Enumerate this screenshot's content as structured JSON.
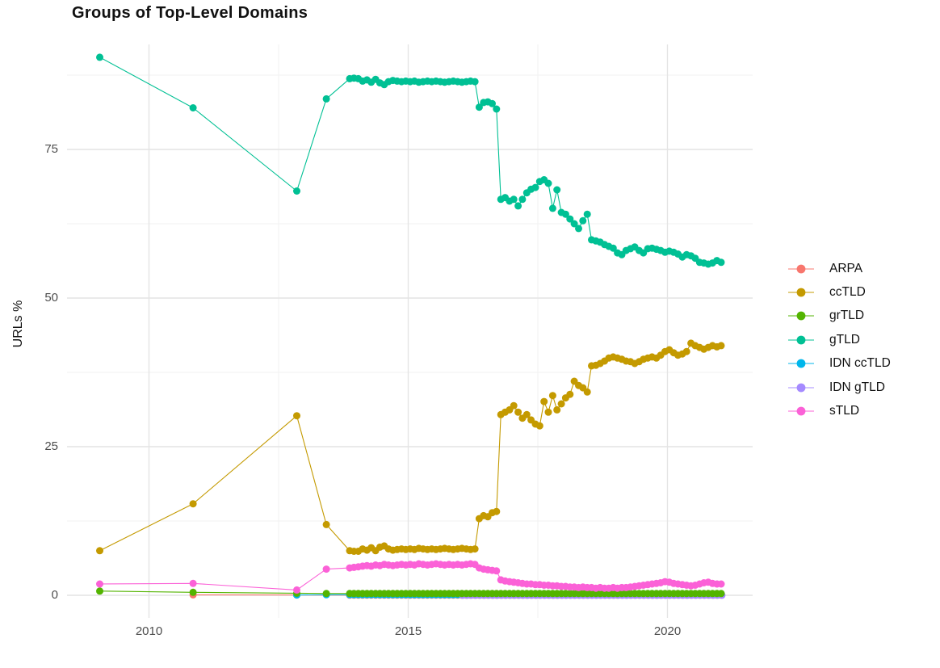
{
  "title": "Groups of Top-Level Domains",
  "chart_data": {
    "type": "line",
    "title": "Groups of Top-Level Domains",
    "xlabel": "",
    "ylabel": "URLs %",
    "grid": true,
    "legend_position": "right",
    "x_ticks": [
      2010,
      2015,
      2020
    ],
    "x_minor_ticks": [
      2012.5,
      2017.5
    ],
    "y_ticks": [
      0,
      25,
      50,
      75
    ],
    "y_minor_ticks": [
      12.5,
      37.5,
      62.5,
      87.5
    ],
    "x_range": [
      2008.4,
      2021.65
    ],
    "y_range": [
      -3.8,
      92.7
    ],
    "draw_order": [
      "ARPA",
      "IDN ccTLD",
      "IDN gTLD",
      "grTLD",
      "ccTLD",
      "gTLD",
      "sTLD"
    ],
    "series": [
      {
        "name": "ARPA",
        "color": "#F8766D",
        "sparse_points": [
          [
            2010.85,
            0.08
          ],
          [
            2012.85,
            0.05
          ]
        ],
        "monthly_start": 2013.87,
        "monthly_step": 0.08333,
        "monthly_values": [
          0.03,
          0.03,
          0.03,
          0.03,
          0.03,
          0.03,
          0.03,
          0.03,
          0.03,
          0.03,
          0.03,
          0.03,
          0.03,
          0.03,
          0.03,
          0.03,
          0.03,
          0.03,
          0.03,
          0.03,
          0.03,
          0.03,
          0.03,
          0.03,
          0.03,
          0.03,
          0.03,
          0.03,
          0.03,
          0.03,
          0.03,
          0.03,
          0.03,
          0.03,
          0.03,
          0.03,
          0.03,
          0.03,
          0.03,
          0.03,
          0.03,
          0.03,
          0.03,
          0.03,
          0.03,
          0.03,
          0.03,
          0.03,
          0.03,
          0.03,
          0.03,
          0.03,
          0.03,
          0.03,
          0.03,
          0.03,
          0.03,
          0.03,
          0.03,
          0.03,
          0.03,
          0.03,
          0.03,
          0.03,
          0.03,
          0.03,
          0.03,
          0.03,
          0.03,
          0.03,
          0.03,
          0.03,
          0.03,
          0.03,
          0.03,
          0.03,
          0.03,
          0.03,
          0.03,
          0.03,
          0.03,
          0.03,
          0.03,
          0.03,
          0.03,
          0.03,
          0.03
        ]
      },
      {
        "name": "ccTLD",
        "color": "#C49A00",
        "sparse_points": [
          [
            2009.05,
            7.5
          ],
          [
            2010.85,
            15.4
          ],
          [
            2012.85,
            30.2
          ],
          [
            2013.42,
            11.9
          ]
        ],
        "monthly_start": 2013.87,
        "monthly_step": 0.08333,
        "monthly_values": [
          7.5,
          7.4,
          7.4,
          7.8,
          7.6,
          8.0,
          7.5,
          8.1,
          8.3,
          7.8,
          7.6,
          7.7,
          7.8,
          7.7,
          7.8,
          7.7,
          7.9,
          7.8,
          7.7,
          7.8,
          7.7,
          7.8,
          7.9,
          7.8,
          7.7,
          7.8,
          7.9,
          7.8,
          7.7,
          7.8,
          12.9,
          13.4,
          13.2,
          13.9,
          14.1,
          30.4,
          30.8,
          31.2,
          31.9,
          30.8,
          29.8,
          30.4,
          29.5,
          28.8,
          28.5,
          32.6,
          30.8,
          33.6,
          31.2,
          32.2,
          33.2,
          33.8,
          36.0,
          35.3,
          34.9,
          34.2,
          38.6,
          38.7,
          39.0,
          39.4,
          39.9,
          40.1,
          39.9,
          39.7,
          39.4,
          39.3,
          39.0,
          39.3,
          39.7,
          39.9,
          40.1,
          39.9,
          40.4,
          41.0,
          41.3,
          40.8,
          40.4,
          40.6,
          41.0,
          42.4,
          42.0,
          41.7,
          41.4,
          41.7,
          42.0,
          41.8,
          42.0
        ]
      },
      {
        "name": "grTLD",
        "color": "#53B400",
        "sparse_points": [
          [
            2009.05,
            0.7
          ],
          [
            2010.85,
            0.5
          ],
          [
            2012.85,
            0.35
          ],
          [
            2013.42,
            0.3
          ]
        ],
        "monthly_start": 2013.87,
        "monthly_step": 0.08333,
        "monthly_values": [
          0.3,
          0.3,
          0.3,
          0.3,
          0.3,
          0.3,
          0.3,
          0.3,
          0.3,
          0.3,
          0.3,
          0.3,
          0.3,
          0.3,
          0.3,
          0.3,
          0.3,
          0.3,
          0.3,
          0.3,
          0.3,
          0.3,
          0.3,
          0.3,
          0.3,
          0.3,
          0.3,
          0.3,
          0.3,
          0.3,
          0.3,
          0.3,
          0.3,
          0.3,
          0.3,
          0.3,
          0.3,
          0.3,
          0.3,
          0.3,
          0.3,
          0.3,
          0.3,
          0.3,
          0.3,
          0.3,
          0.3,
          0.3,
          0.3,
          0.3,
          0.3,
          0.3,
          0.3,
          0.3,
          0.3,
          0.3,
          0.3,
          0.3,
          0.3,
          0.3,
          0.3,
          0.3,
          0.3,
          0.3,
          0.3,
          0.3,
          0.3,
          0.3,
          0.3,
          0.3,
          0.3,
          0.3,
          0.3,
          0.3,
          0.3,
          0.3,
          0.3,
          0.3,
          0.3,
          0.3,
          0.3,
          0.3,
          0.3,
          0.3,
          0.3,
          0.3,
          0.3
        ]
      },
      {
        "name": "gTLD",
        "color": "#00C094",
        "sparse_points": [
          [
            2009.05,
            90.5
          ],
          [
            2010.85,
            82.0
          ],
          [
            2012.85,
            68.0
          ],
          [
            2013.42,
            83.5
          ]
        ],
        "monthly_start": 2013.87,
        "monthly_step": 0.08333,
        "monthly_values": [
          86.9,
          87.0,
          86.9,
          86.5,
          86.7,
          86.3,
          86.8,
          86.2,
          85.9,
          86.4,
          86.6,
          86.5,
          86.4,
          86.5,
          86.4,
          86.5,
          86.3,
          86.4,
          86.5,
          86.4,
          86.5,
          86.4,
          86.3,
          86.4,
          86.5,
          86.4,
          86.3,
          86.4,
          86.5,
          86.4,
          82.1,
          82.9,
          83.0,
          82.7,
          81.8,
          66.6,
          66.9,
          66.3,
          66.6,
          65.5,
          66.6,
          67.7,
          68.3,
          68.6,
          69.6,
          69.9,
          69.3,
          65.1,
          68.2,
          64.4,
          64.1,
          63.3,
          62.5,
          61.7,
          63.0,
          64.1,
          59.8,
          59.6,
          59.4,
          59.0,
          58.7,
          58.4,
          57.6,
          57.3,
          58.0,
          58.3,
          58.6,
          58.0,
          57.6,
          58.3,
          58.4,
          58.2,
          58.0,
          57.7,
          57.9,
          57.7,
          57.4,
          56.9,
          57.3,
          57.1,
          56.7,
          56.0,
          55.9,
          55.7,
          55.9,
          56.3,
          56.0
        ]
      },
      {
        "name": "IDN ccTLD",
        "color": "#00B6EB",
        "sparse_points": [
          [
            2012.85,
            0.05
          ],
          [
            2013.42,
            0.1
          ]
        ],
        "monthly_start": 2013.87,
        "monthly_step": 0.08333,
        "monthly_values": [
          0.1,
          0.1,
          0.1,
          0.1,
          0.1,
          0.1,
          0.1,
          0.1,
          0.1,
          0.1,
          0.1,
          0.1,
          0.1,
          0.1,
          0.1,
          0.1,
          0.1,
          0.1,
          0.1,
          0.1,
          0.1,
          0.1,
          0.1,
          0.1,
          0.1,
          0.1,
          0.1,
          0.1,
          0.1,
          0.1,
          0.1,
          0.1,
          0.1,
          0.1,
          0.1,
          0.1,
          0.1,
          0.1,
          0.1,
          0.1,
          0.1,
          0.1,
          0.1,
          0.1,
          0.1,
          0.1,
          0.1,
          0.1,
          0.1,
          0.1,
          0.1,
          0.1,
          0.1,
          0.1,
          0.1,
          0.1,
          0.1,
          0.1,
          0.1,
          0.1,
          0.1,
          0.1,
          0.1,
          0.1,
          0.1,
          0.1,
          0.1,
          0.1,
          0.1,
          0.1,
          0.1,
          0.1,
          0.1,
          0.1,
          0.1,
          0.1,
          0.1,
          0.1,
          0.1,
          0.1,
          0.1,
          0.1,
          0.1,
          0.1,
          0.1,
          0.1,
          0.1
        ]
      },
      {
        "name": "IDN gTLD",
        "color": "#A58AFF",
        "sparse_points": [],
        "monthly_start": 2016.05,
        "monthly_step": 0.08333,
        "monthly_values": [
          0.02,
          0.02,
          0.02,
          0.02,
          0.02,
          0.02,
          0.02,
          0.02,
          0.02,
          0.02,
          0.02,
          0.02,
          0.02,
          0.02,
          0.02,
          0.02,
          0.02,
          0.02,
          0.02,
          0.02,
          0.02,
          0.02,
          0.02,
          0.02,
          0.02,
          0.02,
          0.02,
          0.02,
          0.02,
          0.02,
          0.02,
          0.02,
          0.02,
          0.02,
          0.02,
          0.02,
          0.02,
          0.02,
          0.02,
          0.02,
          0.02,
          0.02,
          0.02,
          0.02,
          0.02,
          0.02,
          0.02,
          0.02,
          0.02,
          0.02,
          0.02,
          0.02,
          0.02,
          0.02,
          0.02,
          0.02,
          0.02,
          0.02,
          0.02,
          0.02,
          0.02
        ]
      },
      {
        "name": "sTLD",
        "color": "#FB61D7",
        "sparse_points": [
          [
            2009.05,
            1.9
          ],
          [
            2010.85,
            2.0
          ],
          [
            2012.85,
            0.9
          ],
          [
            2013.42,
            4.4
          ]
        ],
        "monthly_start": 2013.87,
        "monthly_step": 0.08333,
        "monthly_values": [
          4.6,
          4.7,
          4.8,
          4.9,
          5.0,
          4.9,
          5.1,
          5.0,
          5.2,
          5.1,
          5.0,
          5.1,
          5.2,
          5.1,
          5.2,
          5.1,
          5.3,
          5.2,
          5.1,
          5.2,
          5.3,
          5.2,
          5.1,
          5.2,
          5.1,
          5.2,
          5.1,
          5.2,
          5.3,
          5.2,
          4.6,
          4.4,
          4.3,
          4.2,
          4.1,
          2.6,
          2.4,
          2.3,
          2.2,
          2.1,
          2.0,
          1.9,
          1.9,
          1.8,
          1.8,
          1.7,
          1.7,
          1.6,
          1.6,
          1.5,
          1.5,
          1.4,
          1.4,
          1.3,
          1.4,
          1.3,
          1.3,
          1.2,
          1.3,
          1.2,
          1.2,
          1.3,
          1.2,
          1.3,
          1.3,
          1.4,
          1.5,
          1.6,
          1.7,
          1.8,
          1.9,
          2.0,
          2.1,
          2.3,
          2.2,
          2.0,
          1.9,
          1.8,
          1.7,
          1.6,
          1.7,
          1.9,
          2.1,
          2.2,
          2.0,
          1.9,
          1.9
        ]
      }
    ]
  }
}
